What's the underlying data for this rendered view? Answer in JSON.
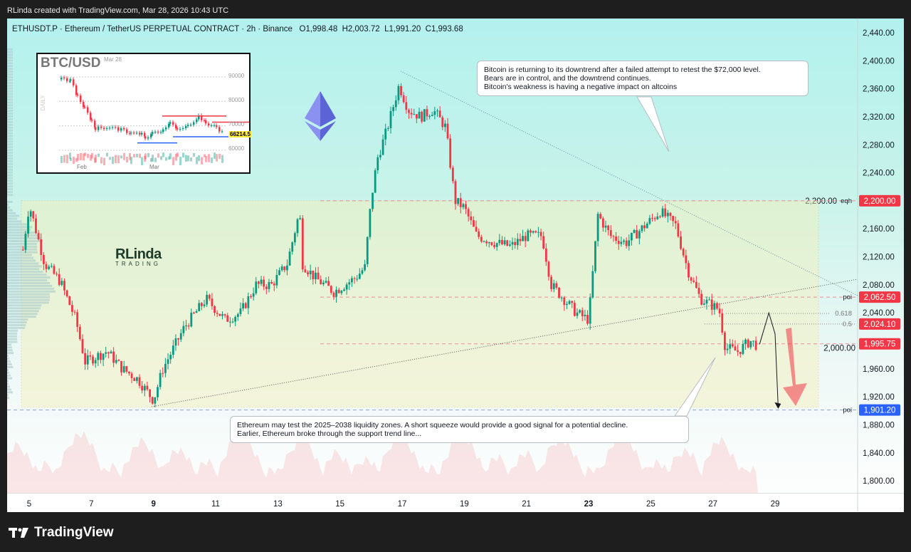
{
  "header": {
    "credit": "RLinda created with TradingView.com, Mar 28, 2026 10:43 UTC"
  },
  "legend": {
    "symbol": "ETHUSDT.P · Ethereum / TetherUS PERPETUAL CONTRACT · 2h · Binance",
    "open": "O1,998.48",
    "high": "H2,003.72",
    "low": "L1,991.20",
    "close": "C1,993.68"
  },
  "price_axis": {
    "ticks": [
      "2,440.00",
      "2,400.00",
      "2,360.00",
      "2,320.00",
      "2,280.00",
      "2,240.00",
      "2,200.00",
      "2,160.00",
      "2,120.00",
      "2,080.00",
      "2,040.00",
      "2,000.00",
      "1,960.00",
      "1,920.00",
      "1,880.00",
      "1,840.00",
      "1,800.00"
    ]
  },
  "time_axis": {
    "ticks": [
      "5",
      "7",
      "9",
      "11",
      "13",
      "15",
      "17",
      "19",
      "21",
      "23",
      "25",
      "27",
      "29"
    ]
  },
  "levels": [
    {
      "label": "eqh",
      "price": 2200.0,
      "badge": "2,200.00",
      "color": "#f23645"
    },
    {
      "label": "poi",
      "price": 2062.5,
      "badge": "2,062.50",
      "color": "#f23645"
    },
    {
      "label": "0.5",
      "price": 2024.1,
      "badge": "2,024.10",
      "color": "#f23645"
    },
    {
      "label": "",
      "price": 1995.75,
      "badge": "1,995.75",
      "color": "#f23645"
    },
    {
      "label": "poi",
      "price": 1901.2,
      "badge": "1,901.20",
      "color": "#2962ff"
    }
  ],
  "fib": {
    "label_618": "0.618",
    "price_618": 2039
  },
  "annotations": {
    "top": [
      "Bitcoin is returning to its downtrend after a failed attempt to retest the $72,000 level.",
      "Bears are in control, and the downtrend continues.",
      "Bitcoin's weakness is having a negative impact on altcoins"
    ],
    "bottom": [
      "Ethereum may test the 2025–2038 liquidity zones. A short squeeze would provide a good signal for a potential decline.",
      "Earlier, Ethereum broke through the support trend line..."
    ]
  },
  "inset": {
    "title": "BTC/USD",
    "date": "Mar 28",
    "side": "DAILY",
    "ticks": [
      "90000",
      "80000",
      "70000",
      "60000"
    ],
    "months": [
      "Feb",
      "Mar"
    ],
    "price": "66214.5"
  },
  "watermark": {
    "brand": "RLinda",
    "sub": "TRADING"
  },
  "footer": {
    "logo": "TradingView"
  },
  "colors": {
    "up": "#089981",
    "down": "#f23645",
    "zone": "#f5f0b8",
    "accent_blue": "#2962ff"
  },
  "chart_data": {
    "type": "candlestick",
    "interval": "2h",
    "ylim": [
      1780,
      2450
    ],
    "xlim_days": [
      4.8,
      30.5
    ],
    "path_day_price": [
      [
        4.8,
        2130
      ],
      [
        5.0,
        2195
      ],
      [
        5.5,
        2110
      ],
      [
        6.0,
        2085
      ],
      [
        6.5,
        2030
      ],
      [
        6.8,
        1970
      ],
      [
        7.5,
        1985
      ],
      [
        8.0,
        1960
      ],
      [
        8.5,
        1945
      ],
      [
        9.0,
        1915
      ],
      [
        9.3,
        1960
      ],
      [
        10.0,
        2020
      ],
      [
        10.7,
        2060
      ],
      [
        11.3,
        2030
      ],
      [
        11.8,
        2040
      ],
      [
        12.3,
        2080
      ],
      [
        12.8,
        2080
      ],
      [
        13.3,
        2110
      ],
      [
        13.7,
        2185
      ],
      [
        13.8,
        2110
      ],
      [
        14.2,
        2090
      ],
      [
        14.8,
        2070
      ],
      [
        15.5,
        2090
      ],
      [
        15.8,
        2105
      ],
      [
        16.0,
        2200
      ],
      [
        16.2,
        2260
      ],
      [
        16.5,
        2300
      ],
      [
        16.9,
        2365
      ],
      [
        17.2,
        2330
      ],
      [
        17.6,
        2320
      ],
      [
        18.0,
        2330
      ],
      [
        18.4,
        2305
      ],
      [
        18.7,
        2200
      ],
      [
        19.0,
        2190
      ],
      [
        19.4,
        2150
      ],
      [
        20.0,
        2140
      ],
      [
        20.5,
        2135
      ],
      [
        21.0,
        2150
      ],
      [
        21.5,
        2150
      ],
      [
        21.8,
        2080
      ],
      [
        22.2,
        2060
      ],
      [
        22.6,
        2040
      ],
      [
        23.0,
        2030
      ],
      [
        23.3,
        2180
      ],
      [
        23.7,
        2150
      ],
      [
        24.2,
        2140
      ],
      [
        24.7,
        2160
      ],
      [
        25.3,
        2185
      ],
      [
        25.8,
        2165
      ],
      [
        26.2,
        2100
      ],
      [
        26.6,
        2060
      ],
      [
        27.0,
        2050
      ],
      [
        27.2,
        2045
      ],
      [
        27.4,
        1990
      ],
      [
        27.8,
        1985
      ],
      [
        28.2,
        2000
      ],
      [
        28.4,
        1994
      ]
    ],
    "projection_day_price": [
      [
        28.5,
        1995
      ],
      [
        28.8,
        2040
      ],
      [
        29.0,
        2010
      ],
      [
        29.1,
        1905
      ]
    ]
  }
}
